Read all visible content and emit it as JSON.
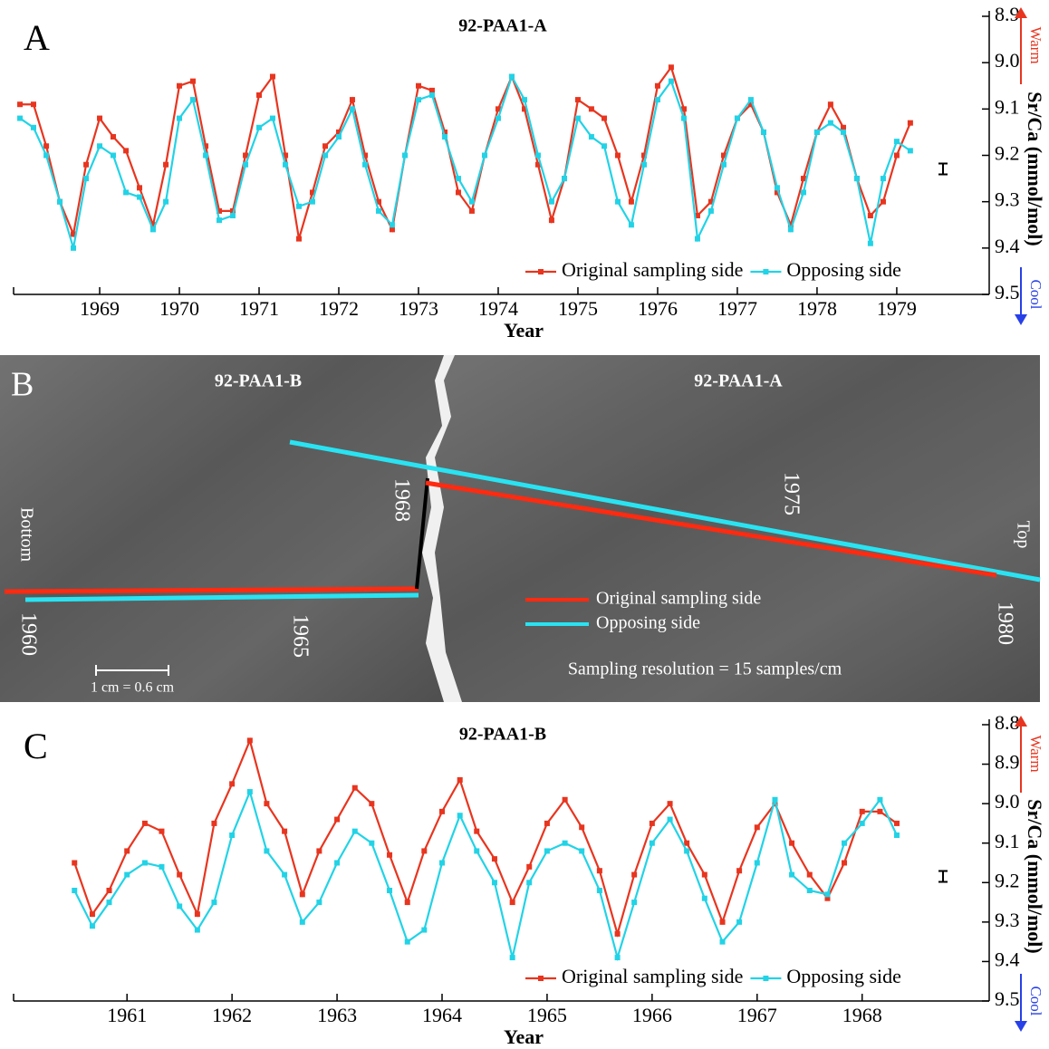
{
  "chart_data": [
    {
      "type": "line",
      "panel_letter": "A",
      "title": "92-PAA1-A",
      "xlabel": "Year",
      "ylabel": "Sr/Ca (mmol/mol)",
      "warm_label": "Warm",
      "cool_label": "Cool",
      "xlim": [
        1967.92,
        1980.16
      ],
      "xticks": [
        1969,
        1970,
        1971,
        1972,
        1973,
        1974,
        1975,
        1976,
        1977,
        1978,
        1979
      ],
      "ylim": [
        9.5,
        8.9
      ],
      "yticks": [
        {
          "value": 9.5,
          "label": "9.5"
        },
        9.4,
        9.3,
        9.2,
        9.1,
        {
          "value": 9,
          "label": "9.0"
        },
        8.9
      ],
      "legend": "lower right",
      "x": [
        1968,
        1968.17,
        1968.33,
        1968.5,
        1968.67,
        1968.83,
        1969,
        1969.17,
        1969.33,
        1969.5,
        1969.67,
        1969.83,
        1970,
        1970.17,
        1970.33,
        1970.5,
        1970.67,
        1970.83,
        1971,
        1971.17,
        1971.33,
        1971.5,
        1971.67,
        1971.83,
        1972,
        1972.17,
        1972.33,
        1972.5,
        1972.67,
        1972.83,
        1973,
        1973.17,
        1973.33,
        1973.5,
        1973.67,
        1973.83,
        1974,
        1974.17,
        1974.33,
        1974.5,
        1974.67,
        1974.83,
        1975,
        1975.17,
        1975.33,
        1975.5,
        1975.67,
        1975.83,
        1976,
        1976.17,
        1976.33,
        1976.5,
        1976.67,
        1976.83,
        1977,
        1977.17,
        1977.33,
        1977.5,
        1977.67,
        1977.83,
        1978,
        1978.17,
        1978.33,
        1978.5,
        1978.67,
        1978.83,
        1979,
        1979.17
      ],
      "series": [
        {
          "name": "Original sampling side",
          "color": "#e8351f",
          "values": [
            9.09,
            9.09,
            9.18,
            9.3,
            9.37,
            9.22,
            9.12,
            9.16,
            9.19,
            9.27,
            9.35,
            9.22,
            9.05,
            9.04,
            9.18,
            9.32,
            9.32,
            9.2,
            9.07,
            9.03,
            9.2,
            9.38,
            9.28,
            9.18,
            9.15,
            9.08,
            9.2,
            9.3,
            9.36,
            9.2,
            9.05,
            9.06,
            9.15,
            9.28,
            9.32,
            9.2,
            9.1,
            9.03,
            9.1,
            9.22,
            9.34,
            9.25,
            9.08,
            9.1,
            9.12,
            9.2,
            9.3,
            9.2,
            9.05,
            9.01,
            9.1,
            9.33,
            9.3,
            9.2,
            9.12,
            9.09,
            9.15,
            9.28,
            9.35,
            9.25,
            9.15,
            9.09,
            9.14,
            9.25,
            9.33,
            9.3,
            9.2,
            9.13
          ]
        },
        {
          "name": "Opposing side",
          "color": "#22d3e6",
          "values": [
            9.12,
            9.14,
            9.2,
            9.3,
            9.4,
            9.25,
            9.18,
            9.2,
            9.28,
            9.29,
            9.36,
            9.3,
            9.12,
            9.08,
            9.2,
            9.34,
            9.33,
            9.22,
            9.14,
            9.12,
            9.22,
            9.31,
            9.3,
            9.2,
            9.16,
            9.1,
            9.22,
            9.32,
            9.35,
            9.2,
            9.08,
            9.07,
            9.16,
            9.25,
            9.3,
            9.2,
            9.12,
            9.03,
            9.08,
            9.2,
            9.3,
            9.25,
            9.12,
            9.16,
            9.18,
            9.3,
            9.35,
            9.22,
            9.08,
            9.04,
            9.12,
            9.38,
            9.32,
            9.22,
            9.12,
            9.08,
            9.15,
            9.27,
            9.36,
            9.28,
            9.15,
            9.13,
            9.15,
            9.25,
            9.39,
            9.25,
            9.17,
            9.19
          ]
        }
      ]
    },
    {
      "type": "line",
      "panel_letter": "C",
      "title": "92-PAA1-B",
      "xlabel": "Year",
      "ylabel": "Sr/Ca (mmol/mol)",
      "warm_label": "Warm",
      "cool_label": "Cool",
      "xlim": [
        1959.92,
        1969.21
      ],
      "xticks": [
        1961,
        1962,
        1963,
        1964,
        1965,
        1966,
        1967,
        1968
      ],
      "ylim": [
        9.5,
        8.8
      ],
      "yticks": [
        {
          "value": 9.5,
          "label": "9.5"
        },
        9.4,
        9.3,
        9.2,
        9.1,
        {
          "value": 9,
          "label": "9.0"
        },
        8.9,
        8.8
      ],
      "legend": "lower right",
      "x": [
        1960.5,
        1960.67,
        1960.83,
        1961,
        1961.17,
        1961.33,
        1961.5,
        1961.67,
        1961.83,
        1962,
        1962.17,
        1962.33,
        1962.5,
        1962.67,
        1962.83,
        1963,
        1963.17,
        1963.33,
        1963.5,
        1963.67,
        1963.83,
        1964,
        1964.17,
        1964.33,
        1964.5,
        1964.67,
        1964.83,
        1965,
        1965.17,
        1965.33,
        1965.5,
        1965.67,
        1965.83,
        1966,
        1966.17,
        1966.33,
        1966.5,
        1966.67,
        1966.83,
        1967,
        1967.17,
        1967.33,
        1967.5,
        1967.67,
        1967.83,
        1968,
        1968.17,
        1968.33
      ],
      "series": [
        {
          "name": "Original sampling side",
          "color": "#e8351f",
          "values": [
            9.15,
            9.28,
            9.22,
            9.12,
            9.05,
            9.07,
            9.18,
            9.28,
            9.05,
            8.95,
            8.84,
            9.0,
            9.07,
            9.23,
            9.12,
            9.04,
            8.96,
            9.0,
            9.13,
            9.25,
            9.12,
            9.02,
            8.94,
            9.07,
            9.14,
            9.25,
            9.16,
            9.05,
            8.99,
            9.06,
            9.17,
            9.33,
            9.18,
            9.05,
            9.0,
            9.1,
            9.18,
            9.3,
            9.17,
            9.06,
            9.0,
            9.1,
            9.18,
            9.24,
            9.15,
            9.02,
            9.02,
            9.05
          ]
        },
        {
          "name": "Opposing side",
          "color": "#22d3e6",
          "values": [
            9.22,
            9.31,
            9.25,
            9.18,
            9.15,
            9.16,
            9.26,
            9.32,
            9.25,
            9.08,
            8.97,
            9.12,
            9.18,
            9.3,
            9.25,
            9.15,
            9.07,
            9.1,
            9.22,
            9.35,
            9.32,
            9.15,
            9.03,
            9.12,
            9.2,
            9.39,
            9.2,
            9.12,
            9.1,
            9.12,
            9.22,
            9.39,
            9.25,
            9.1,
            9.04,
            9.12,
            9.24,
            9.35,
            9.3,
            9.15,
            8.99,
            9.18,
            9.22,
            9.23,
            9.1,
            9.05,
            8.99,
            9.08
          ]
        }
      ]
    }
  ],
  "core_image": {
    "panel_letter": "B",
    "left_label": "92-PAA1-B",
    "right_label": "92-PAA1-A",
    "bottom": "Bottom",
    "top": "Top",
    "year_marks": [
      "1960",
      "1965",
      "1968",
      "1975",
      "1980"
    ],
    "legend": [
      "Original sampling  side",
      "Opposing side"
    ],
    "resolution": "Sampling resolution = 15 samples/cm",
    "scale": "1 cm = 0.6 cm"
  }
}
